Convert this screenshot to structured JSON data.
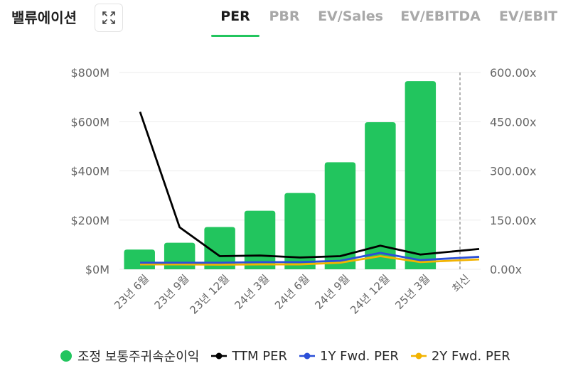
{
  "header": {
    "title": "밸류에이션",
    "expand_icon": "expand-icon",
    "tabs": [
      {
        "label": "PER",
        "active": true
      },
      {
        "label": "PBR",
        "active": false
      },
      {
        "label": "EV/Sales",
        "active": false
      },
      {
        "label": "EV/EBITDA",
        "active": false
      },
      {
        "label": "EV/EBIT",
        "active": false
      }
    ]
  },
  "colors": {
    "bar": "#22c55e",
    "ttm": "#000000",
    "fwd1": "#2b4fd8",
    "fwd2": "#f2b300",
    "grid": "#ebebeb",
    "axis_text": "#666666",
    "latest_line": "#9a9a9a"
  },
  "chart_data": {
    "type": "bar",
    "categories": [
      "23년 6월",
      "23년 9월",
      "23년 12월",
      "24년 3월",
      "24년 6월",
      "24년 9월",
      "24년 12월",
      "25년 3월",
      "최신"
    ],
    "left_axis": {
      "ticks": [
        "$0M",
        "$200M",
        "$400M",
        "$600M",
        "$800M"
      ],
      "tick_values": [
        0,
        200,
        400,
        600,
        800
      ],
      "ylim": [
        0,
        800
      ],
      "unit": "$M"
    },
    "right_axis": {
      "ticks": [
        "0.00x",
        "150.00x",
        "300.00x",
        "450.00x",
        "600.00x"
      ],
      "tick_values": [
        0,
        150,
        300,
        450,
        600
      ],
      "ylim": [
        0,
        600
      ]
    },
    "grid": true,
    "legend_position": "bottom",
    "series": [
      {
        "name": "조정 보통주귀속순이익",
        "type": "bar",
        "axis": "left",
        "values": [
          80,
          108,
          172,
          238,
          310,
          435,
          598,
          765,
          null
        ]
      },
      {
        "name": "TTM PER",
        "type": "line",
        "axis": "right",
        "values": [
          480,
          128,
          40,
          42,
          36,
          40,
          72,
          45,
          62
        ]
      },
      {
        "name": "1Y Fwd. PER",
        "type": "line",
        "axis": "right",
        "values": [
          20,
          20,
          20,
          22,
          22,
          26,
          50,
          28,
          38
        ]
      },
      {
        "name": "2Y Fwd. PER",
        "type": "line",
        "axis": "right",
        "values": [
          15,
          15,
          14,
          15,
          15,
          20,
          40,
          22,
          30
        ]
      }
    ]
  }
}
